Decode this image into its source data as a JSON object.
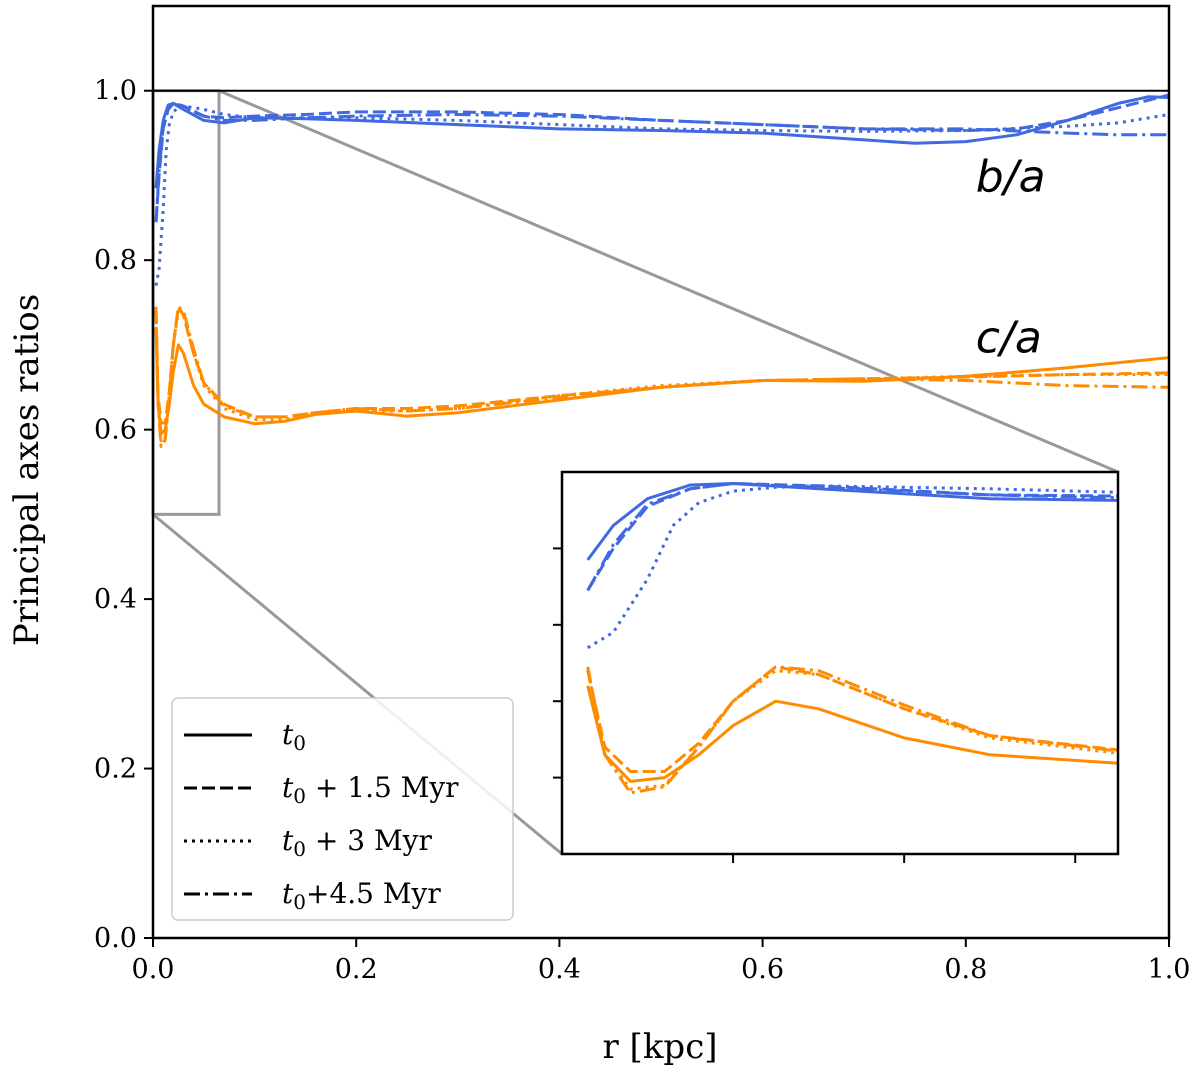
{
  "chart_data": {
    "type": "line",
    "title": "",
    "xlabel": "r [kpc]",
    "ylabel": "Principal axes ratios",
    "xlim": [
      0.0,
      1.0
    ],
    "ylim": [
      0.0,
      1.1
    ],
    "xticks": [
      "0.0",
      "0.2",
      "0.4",
      "0.6",
      "0.8",
      "1.0"
    ],
    "yticks": [
      "0.0",
      "0.2",
      "0.4",
      "0.6",
      "0.8",
      "1.0"
    ],
    "reference_line": 1.0,
    "colors": {
      "b_over_a": "#4169e1",
      "c_over_a": "#ff8c00",
      "zoom": "#999999",
      "axis": "#000000"
    },
    "annotations": [
      {
        "base": "b",
        "sep": "/",
        "sub": "a",
        "x": 0.8,
        "y": 0.9
      },
      {
        "base": "c",
        "sep": "/",
        "sub": "a",
        "x": 0.8,
        "y": 0.71
      }
    ],
    "legend": {
      "position": "lower-left",
      "entries": [
        {
          "main": "t",
          "sub": "0",
          "rest": "",
          "dash": "solid"
        },
        {
          "main": "t",
          "sub": "0",
          "rest": " + 1.5 Myr",
          "dash": "dashed"
        },
        {
          "main": "t",
          "sub": "0",
          "rest": " + 3 Myr",
          "dash": "dotted"
        },
        {
          "main": "t",
          "sub": "0",
          "rest": "+4.5 Myr",
          "dash": "dashdot"
        }
      ]
    },
    "series": [
      {
        "name": "b/a t0",
        "quantity": "b/a",
        "dash": "solid",
        "x": [
          0.003,
          0.006,
          0.01,
          0.015,
          0.02,
          0.03,
          0.05,
          0.07,
          0.1,
          0.15,
          0.2,
          0.3,
          0.4,
          0.5,
          0.6,
          0.7,
          0.75,
          0.8,
          0.85,
          0.9,
          0.95,
          0.98,
          1.0
        ],
        "y": [
          0.885,
          0.93,
          0.965,
          0.983,
          0.985,
          0.978,
          0.965,
          0.962,
          0.968,
          0.967,
          0.965,
          0.96,
          0.955,
          0.953,
          0.95,
          0.942,
          0.938,
          0.94,
          0.948,
          0.965,
          0.985,
          0.993,
          0.992
        ]
      },
      {
        "name": "b/a t0+1.5",
        "quantity": "b/a",
        "dash": "dashed",
        "x": [
          0.003,
          0.006,
          0.01,
          0.015,
          0.02,
          0.03,
          0.05,
          0.07,
          0.1,
          0.15,
          0.2,
          0.3,
          0.4,
          0.5,
          0.6,
          0.7,
          0.8,
          0.85,
          0.9,
          0.95,
          1.0
        ],
        "y": [
          0.845,
          0.9,
          0.955,
          0.978,
          0.985,
          0.982,
          0.97,
          0.968,
          0.97,
          0.972,
          0.975,
          0.975,
          0.972,
          0.965,
          0.96,
          0.955,
          0.953,
          0.955,
          0.965,
          0.98,
          0.995
        ]
      },
      {
        "name": "b/a t0+3",
        "quantity": "b/a",
        "dash": "dotted",
        "x": [
          0.003,
          0.006,
          0.01,
          0.013,
          0.016,
          0.02,
          0.025,
          0.03,
          0.05,
          0.07,
          0.1,
          0.15,
          0.2,
          0.3,
          0.4,
          0.5,
          0.6,
          0.7,
          0.8,
          0.9,
          0.95,
          1.0
        ],
        "y": [
          0.77,
          0.79,
          0.86,
          0.93,
          0.96,
          0.975,
          0.98,
          0.982,
          0.978,
          0.972,
          0.968,
          0.968,
          0.968,
          0.965,
          0.96,
          0.955,
          0.953,
          0.952,
          0.953,
          0.958,
          0.962,
          0.972
        ]
      },
      {
        "name": "b/a t0+4.5",
        "quantity": "b/a",
        "dash": "dashdot",
        "x": [
          0.003,
          0.006,
          0.01,
          0.015,
          0.02,
          0.03,
          0.05,
          0.07,
          0.1,
          0.15,
          0.2,
          0.3,
          0.4,
          0.5,
          0.6,
          0.7,
          0.8,
          0.9,
          0.95,
          1.0
        ],
        "y": [
          0.845,
          0.905,
          0.958,
          0.978,
          0.985,
          0.98,
          0.97,
          0.965,
          0.965,
          0.968,
          0.97,
          0.972,
          0.97,
          0.965,
          0.96,
          0.955,
          0.955,
          0.95,
          0.948,
          0.948
        ]
      },
      {
        "name": "c/a t0",
        "quantity": "c/a",
        "dash": "solid",
        "x": [
          0.003,
          0.005,
          0.008,
          0.012,
          0.016,
          0.02,
          0.025,
          0.03,
          0.04,
          0.05,
          0.07,
          0.1,
          0.13,
          0.16,
          0.2,
          0.25,
          0.3,
          0.4,
          0.5,
          0.6,
          0.7,
          0.8,
          0.9,
          1.0
        ],
        "y": [
          0.72,
          0.63,
          0.595,
          0.6,
          0.63,
          0.668,
          0.7,
          0.69,
          0.652,
          0.63,
          0.615,
          0.607,
          0.61,
          0.618,
          0.622,
          0.616,
          0.62,
          0.635,
          0.65,
          0.658,
          0.657,
          0.663,
          0.673,
          0.685
        ]
      },
      {
        "name": "c/a t0+1.5",
        "quantity": "c/a",
        "dash": "dashed",
        "x": [
          0.003,
          0.005,
          0.008,
          0.012,
          0.016,
          0.02,
          0.025,
          0.03,
          0.04,
          0.05,
          0.07,
          0.1,
          0.13,
          0.16,
          0.2,
          0.25,
          0.3,
          0.4,
          0.5,
          0.6,
          0.7,
          0.8,
          0.9,
          1.0
        ],
        "y": [
          0.74,
          0.64,
          0.608,
          0.608,
          0.645,
          0.7,
          0.745,
          0.735,
          0.69,
          0.655,
          0.63,
          0.615,
          0.615,
          0.62,
          0.625,
          0.625,
          0.628,
          0.64,
          0.65,
          0.658,
          0.66,
          0.662,
          0.665,
          0.667
        ]
      },
      {
        "name": "c/a t0+3",
        "quantity": "c/a",
        "dash": "dotted",
        "x": [
          0.003,
          0.005,
          0.008,
          0.012,
          0.016,
          0.02,
          0.025,
          0.03,
          0.04,
          0.05,
          0.07,
          0.1,
          0.13,
          0.16,
          0.2,
          0.25,
          0.3,
          0.4,
          0.5,
          0.6,
          0.7,
          0.8,
          0.9,
          1.0
        ],
        "y": [
          0.74,
          0.63,
          0.585,
          0.59,
          0.64,
          0.7,
          0.74,
          0.735,
          0.69,
          0.652,
          0.625,
          0.612,
          0.612,
          0.618,
          0.622,
          0.622,
          0.625,
          0.64,
          0.652,
          0.658,
          0.66,
          0.663,
          0.665,
          0.665
        ]
      },
      {
        "name": "c/a t0+4.5",
        "quantity": "c/a",
        "dash": "dashdot",
        "x": [
          0.003,
          0.005,
          0.008,
          0.012,
          0.016,
          0.02,
          0.025,
          0.03,
          0.04,
          0.05,
          0.07,
          0.1,
          0.13,
          0.16,
          0.2,
          0.25,
          0.3,
          0.4,
          0.5,
          0.6,
          0.7,
          0.8,
          0.9,
          1.0
        ],
        "y": [
          0.745,
          0.63,
          0.58,
          0.588,
          0.64,
          0.7,
          0.745,
          0.74,
          0.695,
          0.655,
          0.628,
          0.615,
          0.615,
          0.62,
          0.625,
          0.622,
          0.625,
          0.638,
          0.65,
          0.658,
          0.66,
          0.658,
          0.652,
          0.65
        ]
      }
    ],
    "inset": {
      "description": "zoom of the region r 0.0 to 0.065 kpc, ratio 0.5 to 1.0",
      "xlim": [
        0.0,
        0.065
      ],
      "ylim": [
        0.5,
        1.0
      ],
      "shows_tick_labels": false
    }
  }
}
